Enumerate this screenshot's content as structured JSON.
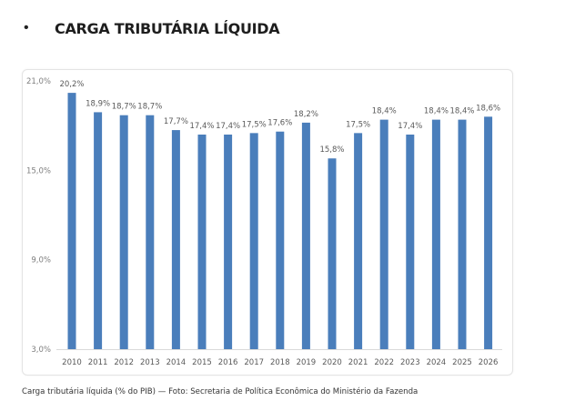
{
  "heading": {
    "bullet": "•",
    "title": "CARGA TRIBUTÁRIA LÍQUIDA"
  },
  "caption": "Carga tributária líquida (% do PIB) — Foto: Secretaria de Política Econômica do Ministério da Fazenda",
  "chart_data": {
    "type": "bar",
    "title": "",
    "xlabel": "",
    "ylabel": "",
    "categories": [
      "2010",
      "2011",
      "2012",
      "2013",
      "2014",
      "2015",
      "2016",
      "2017",
      "2018",
      "2019",
      "2020",
      "2021",
      "2022",
      "2023",
      "2024",
      "2025",
      "2026"
    ],
    "values": [
      20.2,
      18.9,
      18.7,
      18.7,
      17.7,
      17.4,
      17.4,
      17.5,
      17.6,
      18.2,
      15.8,
      17.5,
      18.4,
      17.4,
      18.4,
      18.4,
      18.6
    ],
    "data_labels": [
      "20,2%",
      "18,9%",
      "18,7%",
      "18,7%",
      "17,7%",
      "17,4%",
      "17,4%",
      "17,5%",
      "17,6%",
      "18,2%",
      "15,8%",
      "17,5%",
      "18,4%",
      "17,4%",
      "18,4%",
      "18,4%",
      "18,6%"
    ],
    "ylim": [
      3,
      21
    ],
    "yticks": [
      3,
      9,
      15,
      21
    ],
    "ytick_labels": [
      "3,0%",
      "9,0%",
      "15,0%",
      "21,0%"
    ],
    "grid": false,
    "legend": "none",
    "bar_color": "#4a7ebb"
  }
}
